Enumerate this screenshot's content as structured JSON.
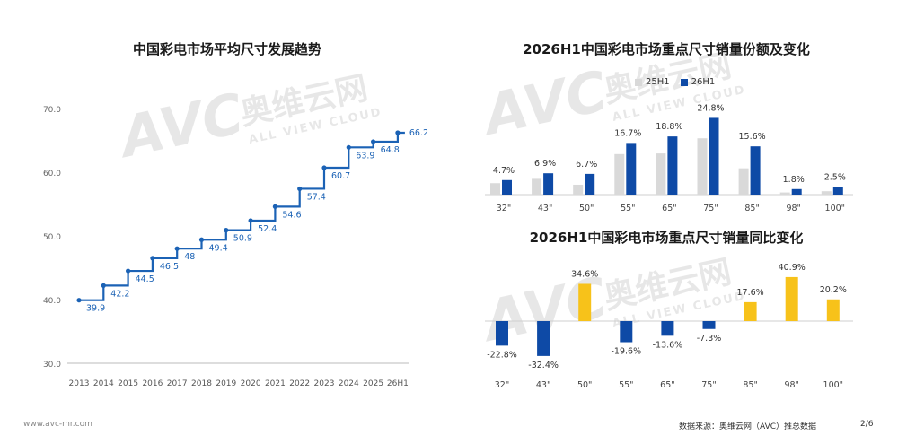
{
  "footer": {
    "website": "www.avc-mr.com",
    "source": "数据来源：奥维云网（AVC）推总数据",
    "page": "2/6"
  },
  "watermark": {
    "logo": "AVC",
    "cn": "奥维云网",
    "en": "ALL VIEW CLOUD"
  },
  "colors": {
    "line": "#1b62b5",
    "series_prev": "#d9d9d9",
    "series_curr": "#0e4aa6",
    "positive": "#f7c21a",
    "negative": "#0e4aa6"
  },
  "chart_data": [
    {
      "type": "line",
      "title": "中国彩电市场平均尺寸发展趋势",
      "categories": [
        "2013",
        "2014",
        "2015",
        "2016",
        "2017",
        "2018",
        "2019",
        "2020",
        "2021",
        "2022",
        "2023",
        "2024",
        "2025",
        "26H1"
      ],
      "values": [
        39.9,
        42.2,
        44.5,
        46.5,
        48,
        49.4,
        50.9,
        52.4,
        54.6,
        57.4,
        60.7,
        63.9,
        64.8,
        66.2
      ],
      "value_labels": [
        "39.9",
        "42.2",
        "44.5",
        "46.5",
        "48",
        "49.4",
        "50.9",
        "52.4",
        "54.6",
        "57.4",
        "60.7",
        "63.9",
        "64.8",
        "66.2"
      ],
      "y_ticks": [
        "30.0",
        "40.0",
        "50.0",
        "60.0",
        "70.0"
      ],
      "ylim": [
        30,
        70
      ],
      "grid": false,
      "style": "step"
    },
    {
      "type": "bar",
      "title": "2026H1中国彩电市场重点尺寸销量份额及变化",
      "categories": [
        "32\"",
        "43\"",
        "50\"",
        "55\"",
        "65\"",
        "75\"",
        "85\"",
        "98\"",
        "100\""
      ],
      "series": [
        {
          "name": "25H1",
          "values": [
            3.7,
            5.1,
            3.2,
            13.1,
            13.3,
            18.2,
            8.5,
            0.7,
            1.1
          ]
        },
        {
          "name": "26H1",
          "values": [
            4.7,
            6.9,
            6.7,
            16.7,
            18.8,
            24.8,
            15.6,
            1.8,
            2.5
          ]
        }
      ],
      "value_labels": [
        "4.7%",
        "6.9%",
        "6.7%",
        "16.7%",
        "18.8%",
        "24.8%",
        "15.6%",
        "1.8%",
        "2.5%"
      ],
      "legend_position": "top-center"
    },
    {
      "type": "bar",
      "title": "2026H1中国彩电市场重点尺寸销量同比变化",
      "categories": [
        "32\"",
        "43\"",
        "50\"",
        "55\"",
        "65\"",
        "75\"",
        "85\"",
        "98\"",
        "100\""
      ],
      "values": [
        -22.8,
        -32.4,
        34.6,
        -19.6,
        -13.6,
        -7.3,
        17.6,
        40.9,
        20.2
      ],
      "value_labels": [
        "-22.8%",
        "-32.4%",
        "34.6%",
        "-19.6%",
        "-13.6%",
        "-7.3%",
        "17.6%",
        "40.9%",
        "20.2%"
      ]
    }
  ]
}
